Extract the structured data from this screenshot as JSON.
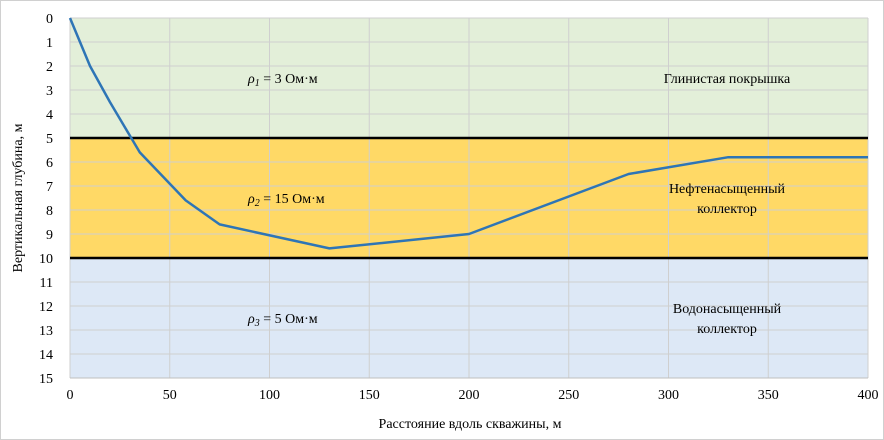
{
  "chart_data": {
    "type": "line",
    "xlabel": "Расстояние вдоль скважины, м",
    "ylabel": "Вертикальная глубина, м",
    "xlim": [
      0,
      400
    ],
    "ylim": [
      0,
      15
    ],
    "y_inverted": true,
    "grid": true,
    "xticks": [
      0,
      50,
      100,
      150,
      200,
      250,
      300,
      350,
      400
    ],
    "yticks": [
      0,
      1,
      2,
      3,
      4,
      5,
      6,
      7,
      8,
      9,
      10,
      11,
      12,
      13,
      14,
      15
    ],
    "series": [
      {
        "color": "#2e75b6",
        "x": [
          0,
          5,
          10,
          20,
          35,
          58,
          75,
          130,
          200,
          280,
          330,
          400
        ],
        "y": [
          0,
          1.0,
          2.0,
          3.5,
          5.6,
          7.6,
          8.6,
          9.6,
          9.0,
          6.5,
          5.8,
          5.8
        ]
      }
    ],
    "layers": [
      {
        "top": 0,
        "bottom": 5,
        "color": "#e3efd9",
        "resistivity_sub": "1",
        "resistivity_value": "= 3 Ом·м",
        "name_lines": [
          "Глинистая покрышка"
        ]
      },
      {
        "top": 5,
        "bottom": 10,
        "color": "#ffd966",
        "resistivity_sub": "2",
        "resistivity_value": "= 15 Ом·м",
        "name_lines": [
          "Нефтенасыщенный",
          "коллектор"
        ]
      },
      {
        "top": 10,
        "bottom": 15,
        "color": "#dde8f6",
        "resistivity_sub": "3",
        "resistivity_value": "= 5 Ом·м",
        "name_lines": [
          "Водонасыщенный",
          "коллектор"
        ]
      }
    ],
    "boundaries": [
      5,
      10
    ],
    "rho_symbol": "ρ"
  }
}
